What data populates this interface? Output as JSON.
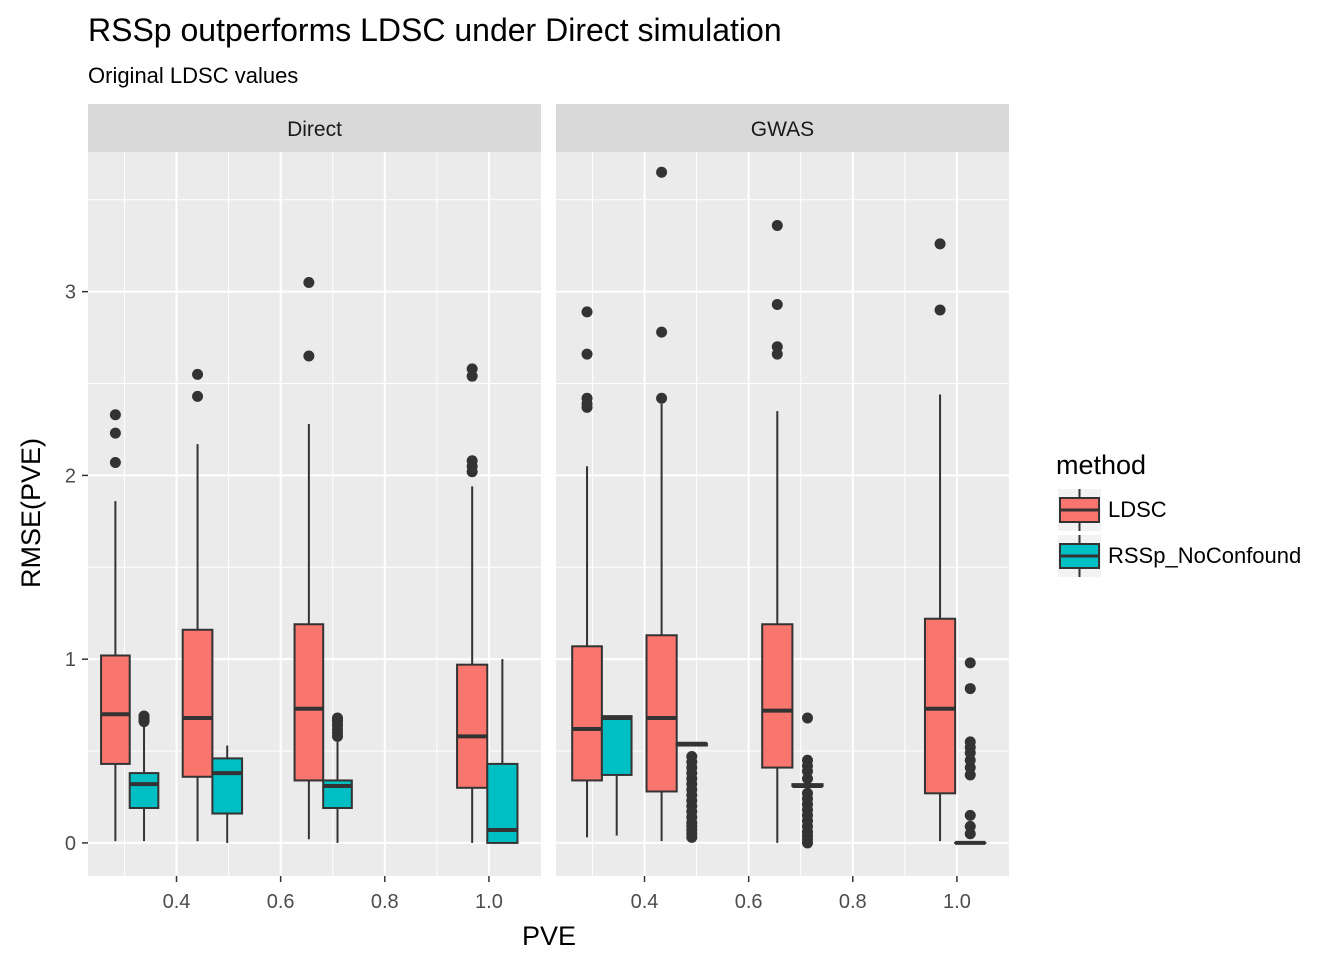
{
  "chart_data": {
    "type": "boxplot",
    "title": "RSSp outperforms LDSC under Direct simulation",
    "subtitle": "Original LDSC values",
    "xlabel": "PVE",
    "ylabel": "RMSE(PVE)",
    "x_ticks": [
      "0.4",
      "0.6",
      "0.8",
      "1.0"
    ],
    "y_ticks": [
      "0",
      "1",
      "2",
      "3"
    ],
    "ylim": [
      -0.18,
      3.76
    ],
    "xlim": [
      0.23,
      1.1
    ],
    "grid": true,
    "legend": {
      "title": "method",
      "position": "right",
      "entries": [
        {
          "name": "LDSC",
          "color": "#F8766D"
        },
        {
          "name": "RSSp_NoConfound",
          "color": "#00BFC4"
        }
      ]
    },
    "panels": [
      {
        "strip": "Direct",
        "boxes": [
          {
            "method": "LDSC",
            "pve": 0.3,
            "x": 0.2826,
            "width": 0.055,
            "q1": 0.43,
            "median": 0.7,
            "q3": 1.02,
            "wlo": 0.01,
            "whi": 1.86,
            "outliers": [
              2.07,
              2.23,
              2.33
            ]
          },
          {
            "method": "RSSp_NoConfound",
            "pve": 0.3,
            "x": 0.3376,
            "width": 0.055,
            "q1": 0.19,
            "median": 0.32,
            "q3": 0.38,
            "wlo": 0.01,
            "whi": 0.65,
            "outliers": [
              0.66,
              0.67,
              0.68,
              0.69,
              0.69
            ]
          },
          {
            "method": "LDSC",
            "pve": 0.5,
            "x": 0.4404,
            "width": 0.057,
            "q1": 0.36,
            "median": 0.68,
            "q3": 1.16,
            "wlo": 0.01,
            "whi": 2.17,
            "outliers": [
              2.43,
              2.55
            ]
          },
          {
            "method": "RSSp_NoConfound",
            "pve": 0.5,
            "x": 0.4974,
            "width": 0.057,
            "q1": 0.16,
            "median": 0.38,
            "q3": 0.46,
            "wlo": 0.0,
            "whi": 0.53,
            "outliers": []
          },
          {
            "method": "LDSC",
            "pve": 0.7,
            "x": 0.6542,
            "width": 0.055,
            "q1": 0.34,
            "median": 0.73,
            "q3": 1.19,
            "wlo": 0.02,
            "whi": 2.28,
            "outliers": [
              2.65,
              3.05
            ]
          },
          {
            "method": "RSSp_NoConfound",
            "pve": 0.7,
            "x": 0.7092,
            "width": 0.055,
            "q1": 0.19,
            "median": 0.31,
            "q3": 0.34,
            "wlo": 0.0,
            "whi": 0.55,
            "outliers": [
              0.58,
              0.6,
              0.62,
              0.64,
              0.66,
              0.67,
              0.68
            ]
          },
          {
            "method": "LDSC",
            "pve": 1.0,
            "x": 0.9678,
            "width": 0.058,
            "q1": 0.3,
            "median": 0.58,
            "q3": 0.97,
            "wlo": 0.0,
            "whi": 1.94,
            "outliers": [
              2.02,
              2.05,
              2.08,
              2.54,
              2.58
            ]
          },
          {
            "method": "RSSp_NoConfound",
            "pve": 1.0,
            "x": 1.0258,
            "width": 0.058,
            "q1": 0.0,
            "median": 0.07,
            "q3": 0.43,
            "wlo": 0.0,
            "whi": 1.0,
            "outliers": []
          }
        ]
      },
      {
        "strip": "GWAS",
        "boxes": [
          {
            "method": "LDSC",
            "pve": 0.3,
            "x": 0.2896,
            "width": 0.057,
            "q1": 0.34,
            "median": 0.62,
            "q3": 1.07,
            "wlo": 0.03,
            "whi": 2.05,
            "outliers": [
              2.37,
              2.39,
              2.42,
              2.66,
              2.89
            ]
          },
          {
            "method": "RSSp_NoConfound",
            "pve": 0.3,
            "x": 0.3466,
            "width": 0.057,
            "q1": 0.37,
            "median": 0.68,
            "q3": 0.69,
            "wlo": 0.04,
            "whi": 0.69,
            "outliers": []
          },
          {
            "method": "LDSC",
            "pve": 0.5,
            "x": 0.4328,
            "width": 0.058,
            "q1": 0.28,
            "median": 0.68,
            "q3": 1.13,
            "wlo": 0.01,
            "whi": 2.39,
            "outliers": [
              2.42,
              2.78,
              3.65
            ]
          },
          {
            "method": "RSSp_NoConfound",
            "pve": 0.5,
            "x": 0.4908,
            "width": 0.058,
            "q1": 0.53,
            "median": 0.54,
            "q3": 0.54,
            "wlo": 0.53,
            "whi": 0.54,
            "outliers": [
              0.03,
              0.05,
              0.07,
              0.09,
              0.11,
              0.14,
              0.17,
              0.2,
              0.23,
              0.26,
              0.29,
              0.32,
              0.35,
              0.38,
              0.41,
              0.44,
              0.47
            ]
          },
          {
            "method": "LDSC",
            "pve": 0.7,
            "x": 0.655,
            "width": 0.058,
            "q1": 0.41,
            "median": 0.72,
            "q3": 1.19,
            "wlo": 0.0,
            "whi": 2.35,
            "outliers": [
              2.66,
              2.7,
              2.93,
              3.36
            ]
          },
          {
            "method": "RSSp_NoConfound",
            "pve": 0.7,
            "x": 0.713,
            "width": 0.058,
            "q1": 0.31,
            "median": 0.31,
            "q3": 0.32,
            "wlo": 0.31,
            "whi": 0.32,
            "outliers": [
              0.0,
              0.02,
              0.04,
              0.06,
              0.09,
              0.12,
              0.15,
              0.18,
              0.21,
              0.24,
              0.27,
              0.35,
              0.39,
              0.42,
              0.45,
              0.68
            ]
          },
          {
            "method": "LDSC",
            "pve": 1.0,
            "x": 0.9676,
            "width": 0.058,
            "q1": 0.27,
            "median": 0.73,
            "q3": 1.22,
            "wlo": 0.01,
            "whi": 2.44,
            "outliers": [
              2.9,
              3.26
            ]
          },
          {
            "method": "RSSp_NoConfound",
            "pve": 1.0,
            "x": 1.0256,
            "width": 0.058,
            "q1": 0.0,
            "median": 0.0,
            "q3": 0.0,
            "wlo": 0.0,
            "whi": 0.0,
            "outliers": [
              0.05,
              0.09,
              0.15,
              0.37,
              0.41,
              0.45,
              0.49,
              0.52,
              0.55,
              0.84,
              0.98
            ]
          }
        ]
      }
    ]
  }
}
